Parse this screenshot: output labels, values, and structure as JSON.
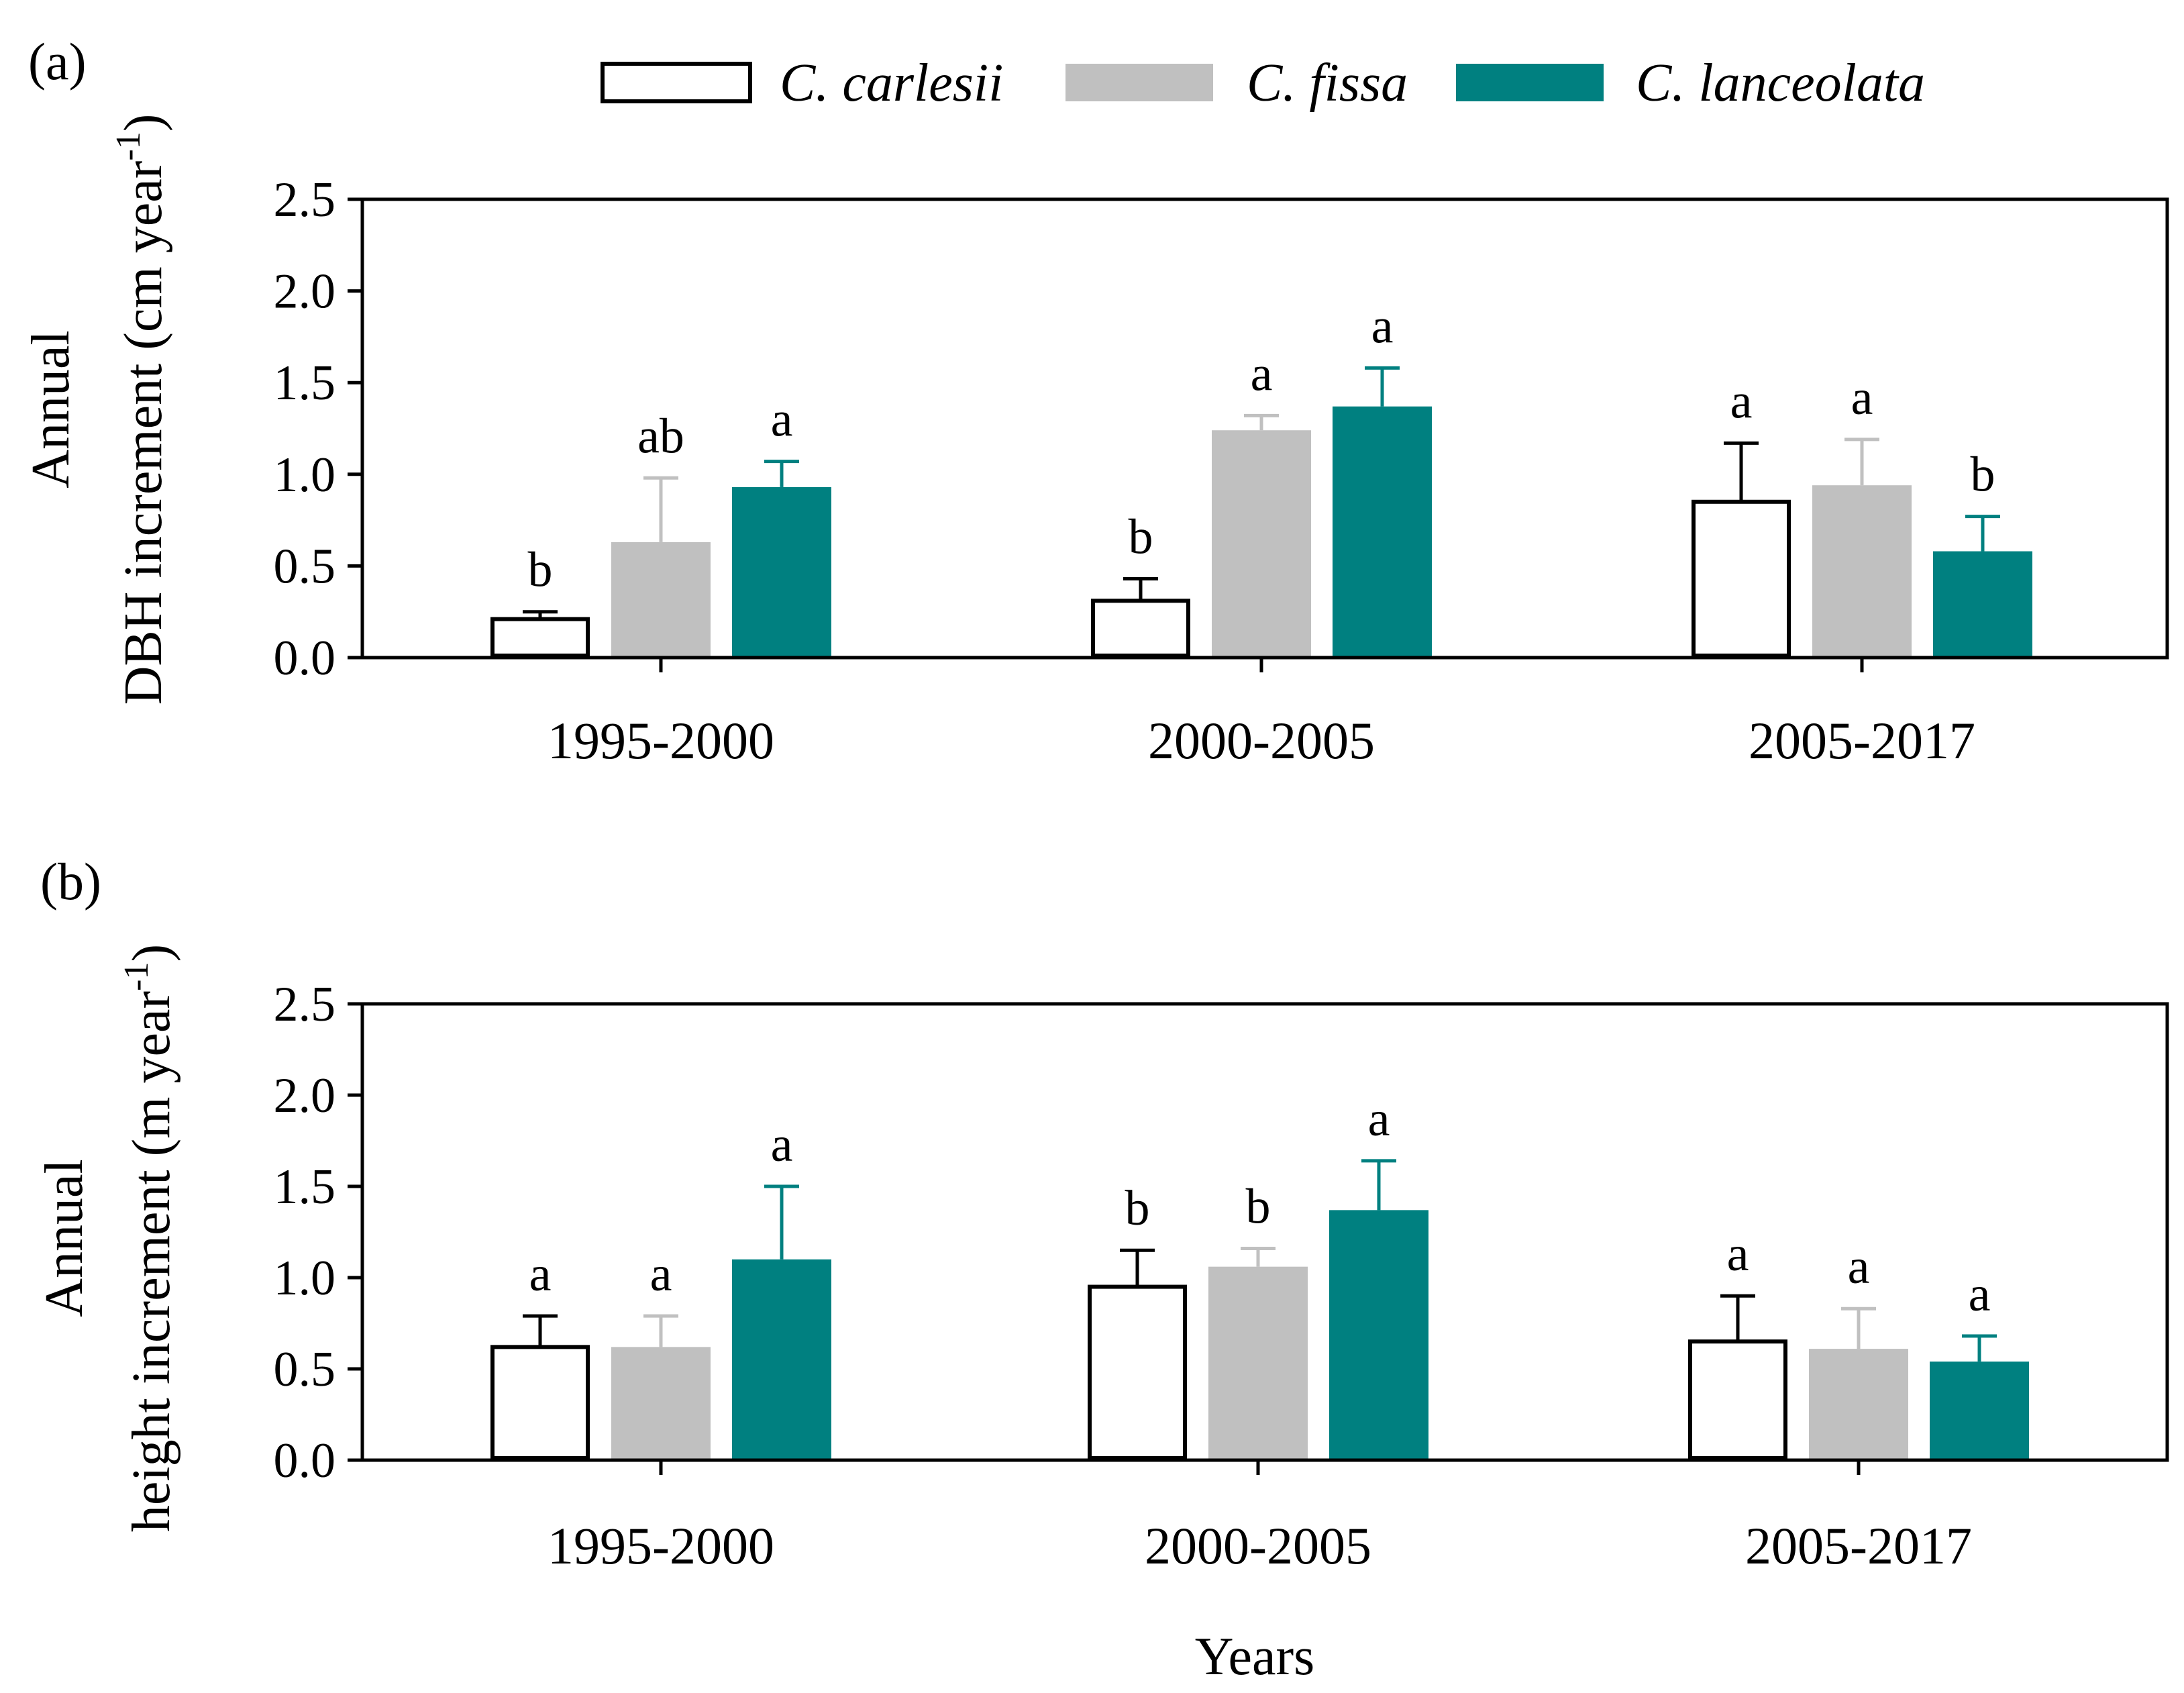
{
  "legend": {
    "colors": [
      "#ffffff",
      "#c0c0c0",
      "#008080"
    ],
    "stroke": "#000000"
  },
  "chart_data": [
    {
      "panel_label": "(a)",
      "type": "bar",
      "ylabel_line1": "Annual",
      "ylabel_line2": "DBH increment (cm year",
      "ylabel_sup": "-1",
      "ylabel_close": ")",
      "xlabel": "",
      "ylim": [
        0,
        2.5
      ],
      "yticks": [
        "0.0",
        "0.5",
        "1.0",
        "1.5",
        "2.0",
        "2.5"
      ],
      "categories": [
        "1995-2000",
        "2000-2005",
        "2005-2017"
      ],
      "series": [
        {
          "name": "C. carlesii",
          "values": [
            0.21,
            0.31,
            0.85
          ],
          "errors": [
            0.04,
            0.12,
            0.32
          ],
          "labels": [
            "b",
            "b",
            "a"
          ]
        },
        {
          "name": "C. fissa",
          "values": [
            0.63,
            1.24,
            0.94
          ],
          "errors": [
            0.35,
            0.08,
            0.25
          ],
          "labels": [
            "ab",
            "a",
            "a"
          ]
        },
        {
          "name": "C. lanceolata",
          "values": [
            0.93,
            1.37,
            0.58
          ],
          "errors": [
            0.14,
            0.21,
            0.19
          ],
          "labels": [
            "a",
            "a",
            "b"
          ]
        }
      ]
    },
    {
      "panel_label": "(b)",
      "type": "bar",
      "ylabel_line1": "Annual",
      "ylabel_line2": "height increment (m year",
      "ylabel_sup": "-1",
      "ylabel_close": ")",
      "xlabel": "Years",
      "ylim": [
        0,
        2.5
      ],
      "yticks": [
        "0.0",
        "0.5",
        "1.0",
        "1.5",
        "2.0",
        "2.5"
      ],
      "categories": [
        "1995-2000",
        "2000-2005",
        "2005-2017"
      ],
      "series": [
        {
          "name": "C. carlesii",
          "values": [
            0.62,
            0.95,
            0.65
          ],
          "errors": [
            0.17,
            0.2,
            0.25
          ],
          "labels": [
            "a",
            "b",
            "a"
          ]
        },
        {
          "name": "C. fissa",
          "values": [
            0.62,
            1.06,
            0.61
          ],
          "errors": [
            0.17,
            0.1,
            0.22
          ],
          "labels": [
            "a",
            "b",
            "a"
          ]
        },
        {
          "name": "C. lanceolata",
          "values": [
            1.1,
            1.37,
            0.54
          ],
          "errors": [
            0.4,
            0.27,
            0.14
          ],
          "labels": [
            "a",
            "a",
            "a"
          ]
        }
      ]
    }
  ]
}
